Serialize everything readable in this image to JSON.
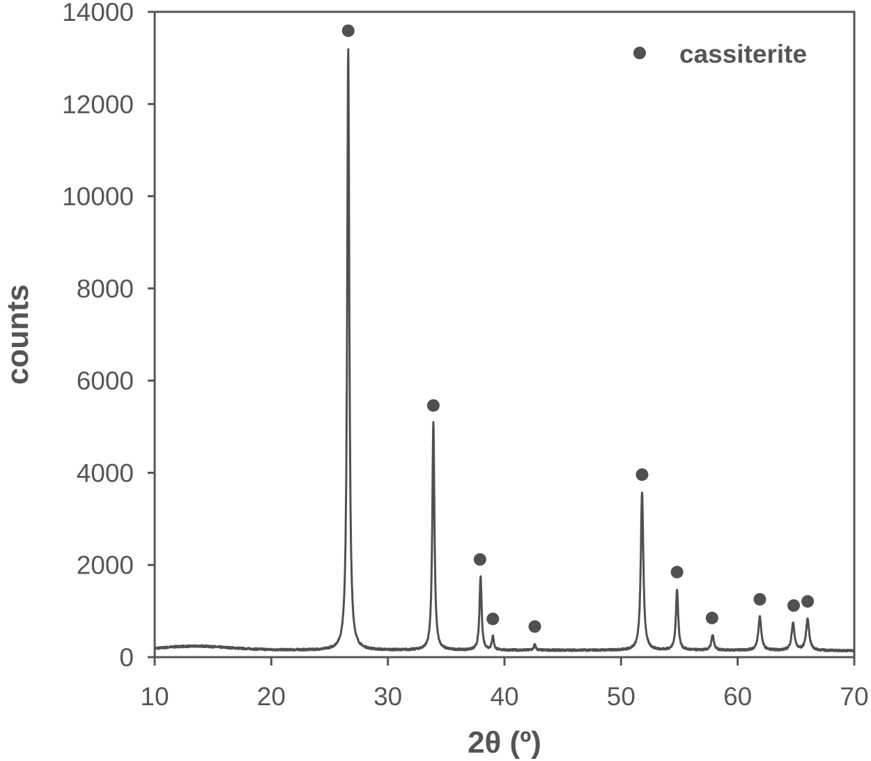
{
  "chart_data": {
    "type": "line",
    "title": "",
    "xlabel": "2θ (º)",
    "ylabel": "counts",
    "xlim": [
      10,
      70
    ],
    "ylim": [
      0,
      14000
    ],
    "xticks": [
      10,
      20,
      30,
      40,
      50,
      60,
      70
    ],
    "yticks": [
      0,
      2000,
      4000,
      6000,
      8000,
      10000,
      12000,
      14000
    ],
    "grid": false,
    "legend": {
      "placement": "top-right",
      "entries": [
        {
          "label": "cassiterite",
          "marker": "filled-circle"
        }
      ]
    },
    "color": "#505050",
    "background_counts": [
      [
        10,
        190
      ],
      [
        12,
        230
      ],
      [
        14,
        240
      ],
      [
        16,
        210
      ],
      [
        18,
        180
      ],
      [
        20,
        160
      ],
      [
        24,
        150
      ],
      [
        30,
        150
      ],
      [
        40,
        150
      ],
      [
        50,
        150
      ],
      [
        60,
        150
      ],
      [
        70,
        140
      ]
    ],
    "peaks": [
      {
        "two_theta": 26.6,
        "counts": 13200,
        "hwhm": 0.11
      },
      {
        "two_theta": 33.9,
        "counts": 5080,
        "hwhm": 0.11
      },
      {
        "two_theta": 37.95,
        "counts": 1740,
        "hwhm": 0.11
      },
      {
        "two_theta": 39.0,
        "counts": 450,
        "hwhm": 0.1
      },
      {
        "two_theta": 42.6,
        "counts": 270,
        "hwhm": 0.1
      },
      {
        "two_theta": 51.8,
        "counts": 3570,
        "hwhm": 0.13
      },
      {
        "two_theta": 54.8,
        "counts": 1450,
        "hwhm": 0.12
      },
      {
        "two_theta": 57.85,
        "counts": 470,
        "hwhm": 0.13
      },
      {
        "two_theta": 61.9,
        "counts": 880,
        "hwhm": 0.15
      },
      {
        "two_theta": 64.75,
        "counts": 730,
        "hwhm": 0.15
      },
      {
        "two_theta": 66.0,
        "counts": 820,
        "hwhm": 0.16
      }
    ],
    "markers": {
      "label": "cassiterite",
      "points": [
        [
          26.6,
          13590
        ],
        [
          33.9,
          5460
        ],
        [
          37.9,
          2120
        ],
        [
          39.0,
          830
        ],
        [
          42.6,
          665
        ],
        [
          51.8,
          3960
        ],
        [
          54.8,
          1845
        ],
        [
          57.8,
          850
        ],
        [
          61.9,
          1255
        ],
        [
          64.8,
          1120
        ],
        [
          66.0,
          1210
        ]
      ]
    }
  }
}
